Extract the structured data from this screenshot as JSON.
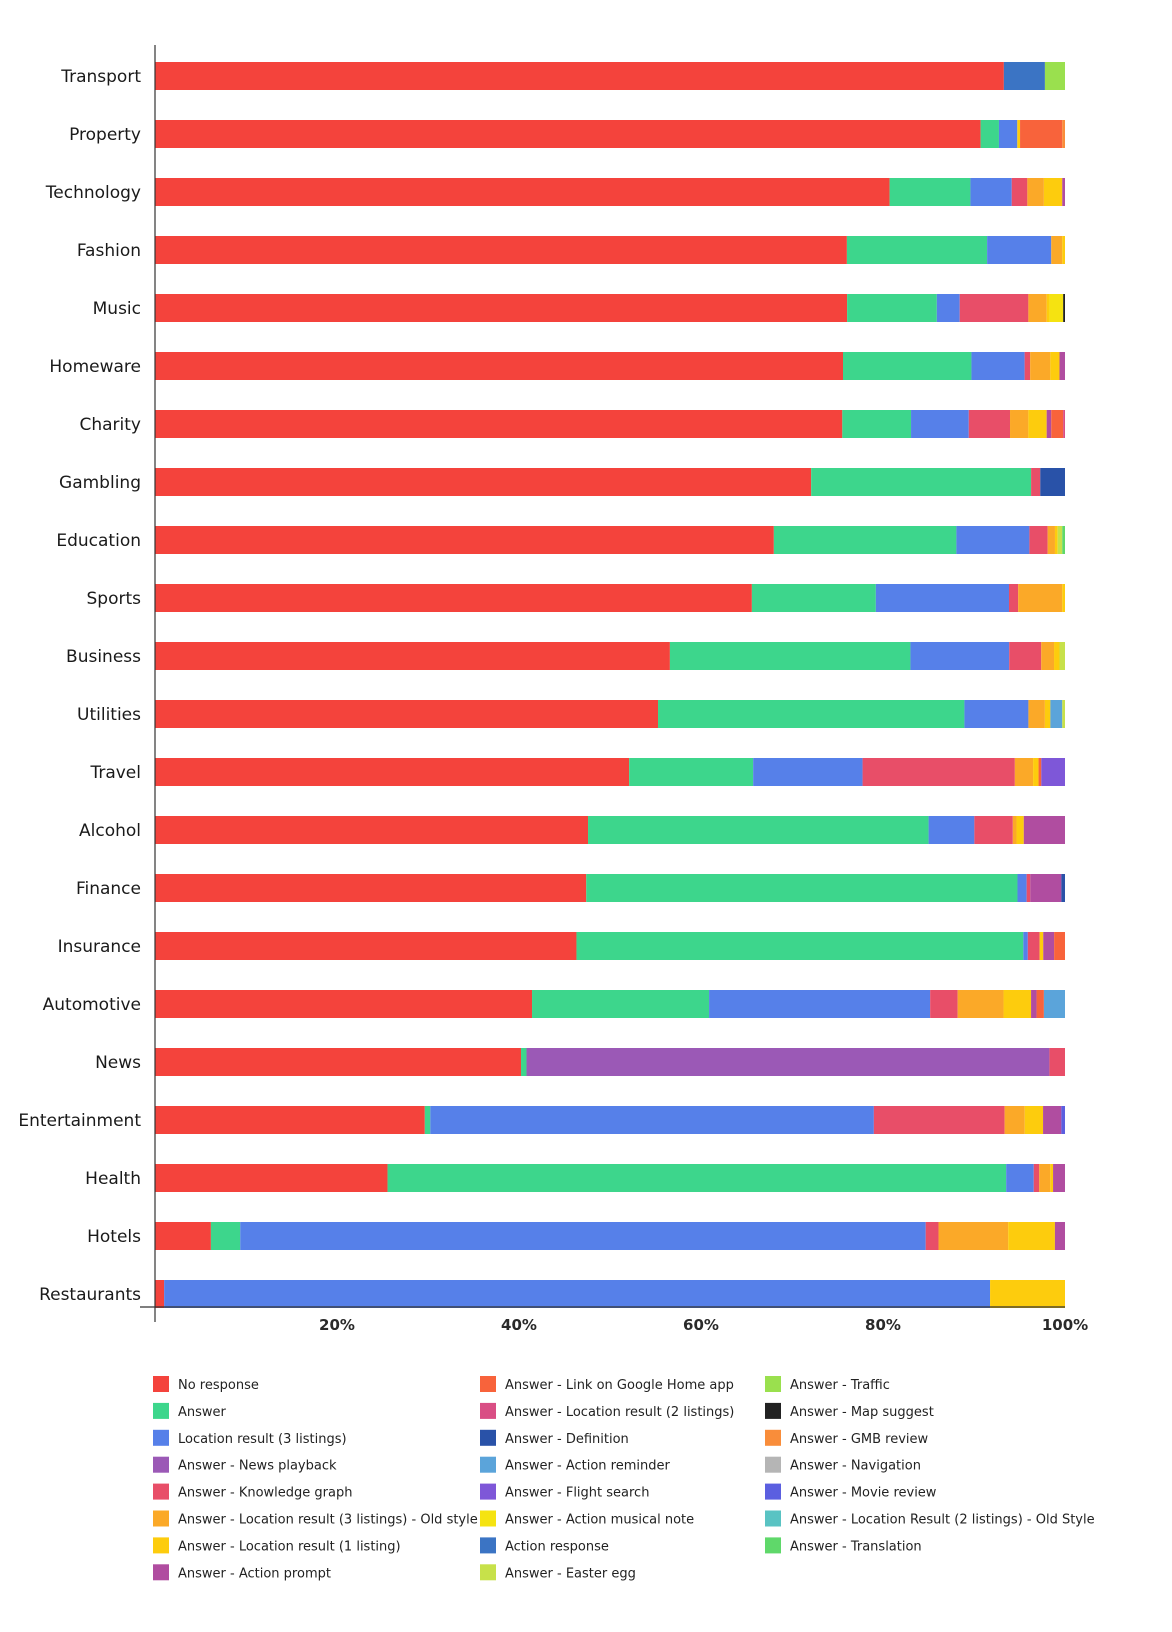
{
  "chart_data": {
    "type": "bar",
    "orientation": "horizontal",
    "stacked": true,
    "title": "",
    "xlabel": "",
    "ylabel": "",
    "xlim": [
      0,
      100
    ],
    "x_ticks": [
      "20%",
      "40%",
      "60%",
      "80%",
      "100%"
    ],
    "x_tick_values": [
      20,
      40,
      60,
      80,
      100
    ],
    "legend_position": "bottom",
    "categories": [
      "Transport",
      "Property",
      "Technology",
      "Fashion",
      "Music",
      "Homeware",
      "Charity",
      "Gambling",
      "Education",
      "Sports",
      "Business",
      "Utilities",
      "Travel",
      "Alcohol",
      "Finance",
      "Insurance",
      "Automotive",
      "News",
      "Entertainment",
      "Health",
      "Hotels",
      "Restaurants"
    ],
    "series": [
      {
        "name": "No response",
        "color": "#F4433C",
        "values": [
          93,
          90,
          80,
          75.5,
          75.6,
          75,
          75,
          71.6,
          67.8,
          65,
          56.3,
          55,
          52,
          47.3,
          47.2,
          46.5,
          41.1,
          39.9,
          29.5,
          25.3,
          6.1,
          1
        ]
      },
      {
        "name": "Answer",
        "color": "#3DD68C",
        "values": [
          0,
          2,
          8.8,
          15.3,
          9.8,
          14,
          7.5,
          24,
          20,
          13.5,
          26.3,
          33.5,
          13.6,
          37.2,
          47.2,
          49.3,
          19.3,
          0.6,
          0.6,
          67.3,
          3.2,
          0
        ]
      },
      {
        "name": "Location result (3 listings)",
        "color": "#5680E9",
        "values": [
          0,
          2,
          4.5,
          7,
          2.5,
          5.8,
          6.3,
          0,
          8,
          14.5,
          10.8,
          7,
          12,
          5,
          1,
          0.5,
          24.1,
          0,
          48.5,
          3,
          74.8,
          90.4
        ]
      },
      {
        "name": "Answer - News playback",
        "color": "#9B59B6",
        "values": [
          0,
          0,
          0,
          0,
          0,
          0,
          0,
          0,
          0,
          0,
          0,
          0,
          0,
          0,
          0,
          0,
          0,
          57,
          0,
          0,
          0,
          0
        ]
      },
      {
        "name": "Answer - Knowledge graph",
        "color": "#E84E68",
        "values": [
          0,
          0,
          1.7,
          0,
          7.5,
          0.6,
          4.5,
          1,
          2,
          1,
          3.5,
          0,
          16.7,
          4.2,
          0.4,
          1.3,
          3,
          1.7,
          14.3,
          0.6,
          1.4,
          0
        ]
      },
      {
        "name": "Answer - Location result (3 listings) - Old style",
        "color": "#FBA928",
        "values": [
          0,
          0,
          1.8,
          1.2,
          2,
          2.2,
          2,
          0,
          0.8,
          4.8,
          1.4,
          1.8,
          2,
          0.4,
          0,
          0,
          5,
          0,
          2.2,
          1.2,
          7.6,
          0
        ]
      },
      {
        "name": "Answer - Location result (1 listing)",
        "color": "#FDCC0D",
        "values": [
          0,
          0.3,
          2,
          0.3,
          0.3,
          1,
          2,
          0,
          0.3,
          0.3,
          0.6,
          0.6,
          0.6,
          0.8,
          0,
          0.4,
          3,
          0,
          2,
          0.3,
          5.1,
          8.2
        ]
      },
      {
        "name": "Answer - Action prompt",
        "color": "#B04DA0",
        "values": [
          0,
          0,
          0.3,
          0,
          0,
          0.6,
          0.5,
          0,
          0,
          0,
          0,
          0,
          0,
          4.5,
          3.4,
          1.2,
          0.6,
          0,
          2,
          1.3,
          1.1,
          0
        ]
      },
      {
        "name": "Answer - Link on Google Home app",
        "color": "#F8633B",
        "values": [
          0,
          4.6,
          0,
          0,
          0,
          0,
          1.3,
          0,
          0,
          0,
          0,
          0,
          0.3,
          0,
          0,
          1.2,
          0.8,
          0,
          0,
          0,
          0,
          0
        ]
      },
      {
        "name": "Answer - Location result (2 listings)",
        "color": "#D94E84",
        "values": [
          0,
          0,
          0,
          0,
          0,
          0,
          0.2,
          0,
          0,
          0,
          0,
          0,
          0,
          0,
          0,
          0,
          0,
          0,
          0,
          0,
          0,
          0
        ]
      },
      {
        "name": "Answer - Definition",
        "color": "#2952A8",
        "values": [
          0,
          0,
          0,
          0,
          0,
          0,
          0,
          2.7,
          0,
          0,
          0,
          0,
          0,
          0,
          0.4,
          0,
          0,
          0,
          0,
          0,
          0,
          0
        ]
      },
      {
        "name": "Answer - Action reminder",
        "color": "#5BA4DA",
        "values": [
          0,
          0,
          0,
          0,
          0,
          0,
          0,
          0,
          0,
          0,
          0,
          1.3,
          0,
          0,
          0,
          0,
          2.3,
          0,
          0,
          0,
          0,
          0
        ]
      },
      {
        "name": "Answer - Flight search",
        "color": "#7E57D8",
        "values": [
          0,
          0,
          0,
          0,
          0,
          0,
          0,
          0,
          0,
          0,
          0,
          0,
          2.6,
          0,
          0,
          0,
          0,
          0,
          0,
          0,
          0,
          0
        ]
      },
      {
        "name": "Answer - Action musical note",
        "color": "#F5E311",
        "values": [
          0,
          0,
          0,
          0,
          1.5,
          0,
          0,
          0,
          0,
          0,
          0,
          0,
          0,
          0,
          0,
          0,
          0,
          0,
          0,
          0,
          0,
          0
        ]
      },
      {
        "name": "Action response",
        "color": "#3B74C4",
        "values": [
          4.5,
          0,
          0,
          0,
          0,
          0,
          0,
          0,
          0,
          0,
          0,
          0,
          0,
          0,
          0,
          0,
          0,
          0,
          0,
          0,
          0,
          0
        ]
      },
      {
        "name": "Answer - Easter egg",
        "color": "#C7E14A",
        "values": [
          0,
          0,
          0,
          0,
          0,
          0,
          0,
          0,
          0.5,
          0,
          0.6,
          0.3,
          0,
          0,
          0,
          0,
          0,
          0,
          0,
          0,
          0,
          0
        ]
      },
      {
        "name": "Answer - Traffic",
        "color": "#9AE04E",
        "values": [
          2.2,
          0,
          0,
          0,
          0,
          0,
          0,
          0,
          0,
          0,
          0,
          0,
          0,
          0,
          0,
          0,
          0,
          0,
          0,
          0,
          0,
          0
        ]
      },
      {
        "name": "Answer - Map suggest",
        "color": "#222222",
        "values": [
          0,
          0,
          0,
          0,
          0.2,
          0,
          0,
          0,
          0,
          0,
          0,
          0,
          0,
          0,
          0,
          0,
          0,
          0,
          0,
          0,
          0,
          0
        ]
      },
      {
        "name": "Answer - GMB review",
        "color": "#F98D3A",
        "values": [
          0,
          0.3,
          0,
          0,
          0,
          0,
          0,
          0,
          0,
          0,
          0,
          0,
          0,
          0,
          0,
          0,
          0,
          0,
          0,
          0,
          0,
          0
        ]
      },
      {
        "name": "Answer - Navigation",
        "color": "#B5B5B5",
        "values": [
          0,
          0,
          0,
          0,
          0,
          0,
          0,
          0,
          0,
          0,
          0,
          0,
          0,
          0,
          0,
          0,
          0,
          0,
          0,
          0,
          0,
          0
        ]
      },
      {
        "name": "Answer - Movie review",
        "color": "#5B5FE0",
        "values": [
          0,
          0,
          0,
          0,
          0,
          0,
          0,
          0,
          0,
          0,
          0,
          0,
          0,
          0,
          0,
          0,
          0,
          0,
          0.4,
          0,
          0,
          0
        ]
      },
      {
        "name": "Answer - Location Result (2 listings) - Old Style",
        "color": "#59C3C3",
        "values": [
          0,
          0,
          0,
          0,
          0,
          0,
          0,
          0,
          0,
          0,
          0,
          0,
          0,
          0,
          0,
          0,
          0,
          0,
          0,
          0,
          0,
          0
        ]
      },
      {
        "name": "Answer - Translation",
        "color": "#5FD86A",
        "values": [
          0,
          0,
          0,
          0,
          0,
          0,
          0,
          0,
          0.3,
          0,
          0,
          0,
          0,
          0,
          0,
          0,
          0,
          0,
          0,
          0,
          0,
          0
        ]
      }
    ],
    "legend_columns": [
      [
        "No response",
        "Answer",
        "Location result (3 listings)",
        "Answer - News playback",
        "Answer - Knowledge graph",
        "Answer - Location result (3 listings) - Old style",
        "Answer - Location result (1 listing)",
        "Answer - Action prompt"
      ],
      [
        "Answer - Link on Google Home app",
        "Answer - Location result (2 listings)",
        "Answer - Definition",
        "Answer - Action reminder",
        "Answer - Flight search",
        "Answer - Action musical note",
        "Action response",
        "Answer - Easter egg"
      ],
      [
        "Answer - Traffic",
        "Answer - Map suggest",
        "Answer - GMB review",
        "Answer - Navigation",
        "Answer - Movie review",
        "Answer - Location Result (2 listings) - Old Style",
        "Answer - Translation"
      ]
    ]
  }
}
